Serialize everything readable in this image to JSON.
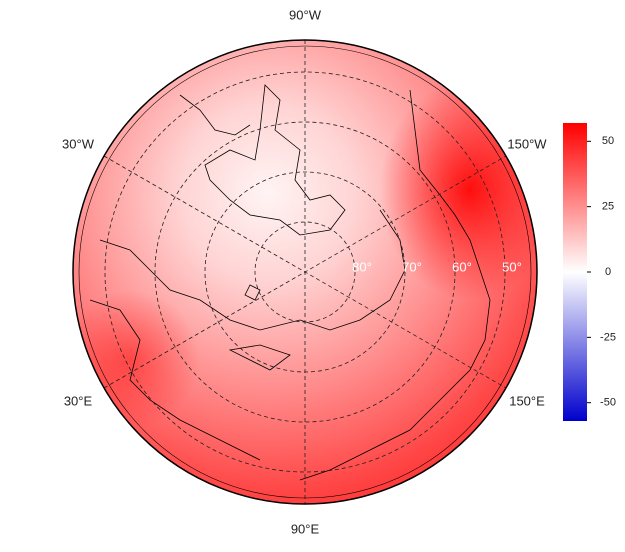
{
  "map": {
    "longitude_labels": [
      "90°W",
      "30°W",
      "150°W",
      "30°E",
      "150°E",
      "90°E"
    ],
    "latitude_labels": [
      "80°",
      "70°",
      "60°",
      "50°"
    ],
    "colorbar": {
      "limits": [
        -57,
        57
      ],
      "ticks": [
        50,
        25,
        0,
        -25,
        -50
      ]
    }
  }
}
